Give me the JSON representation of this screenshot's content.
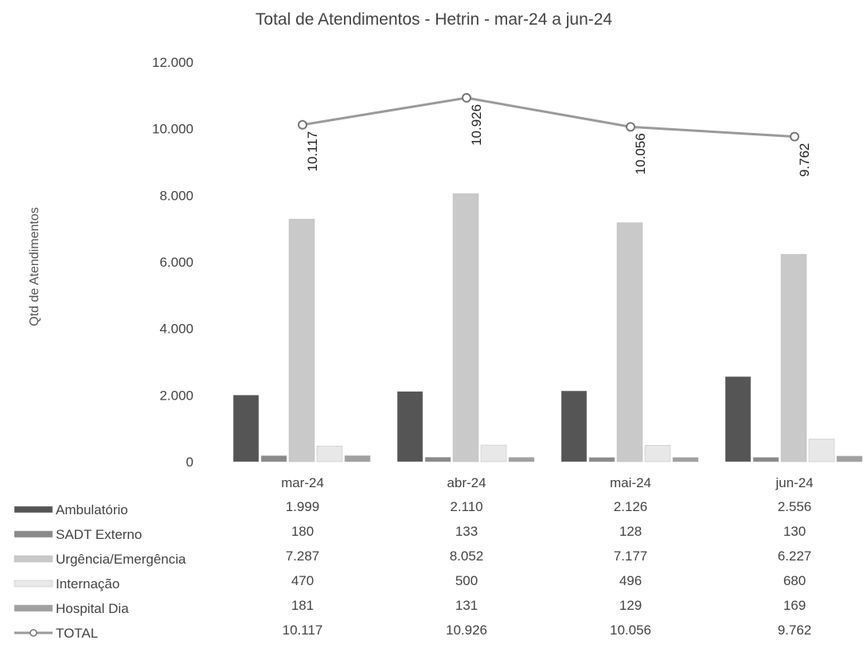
{
  "chart_data": {
    "type": "bar",
    "title": "Total de Atendimentos - Hetrin - mar-24 a jun-24",
    "ylabel": "Qtd de Atendimentos",
    "xlabel": "",
    "ylim": [
      0,
      12000
    ],
    "yticks": [
      "0",
      "2.000",
      "4.000",
      "6.000",
      "8.000",
      "10.000",
      "12.000"
    ],
    "yticks_values": [
      0,
      2000,
      4000,
      6000,
      8000,
      10000,
      12000
    ],
    "categories": [
      "mar-24",
      "abr-24",
      "mai-24",
      "jun-24"
    ],
    "series": [
      {
        "name": "Ambulatório",
        "type": "bar",
        "color": "#555555",
        "values": [
          1999,
          2110,
          2126,
          2556
        ],
        "labels": [
          "1.999",
          "2.110",
          "2.126",
          "2.556"
        ]
      },
      {
        "name": "SADT Externo",
        "type": "bar",
        "color": "#8a8a8a",
        "values": [
          180,
          133,
          128,
          130
        ],
        "labels": [
          "180",
          "133",
          "128",
          "130"
        ]
      },
      {
        "name": "Urgência/Emergência",
        "type": "bar",
        "color": "#c9c9c9",
        "values": [
          7287,
          8052,
          7177,
          6227
        ],
        "labels": [
          "7.287",
          "8.052",
          "7.177",
          "6.227"
        ]
      },
      {
        "name": "Internação",
        "type": "bar",
        "color": "#e8e8e8",
        "values": [
          470,
          500,
          496,
          680
        ],
        "labels": [
          "470",
          "500",
          "496",
          "680"
        ]
      },
      {
        "name": "Hospital Dia",
        "type": "bar",
        "color": "#a0a0a0",
        "values": [
          181,
          131,
          129,
          169
        ],
        "labels": [
          "181",
          "131",
          "129",
          "169"
        ]
      },
      {
        "name": "TOTAL",
        "type": "line",
        "color": "#9a9a9a",
        "values": [
          10117,
          10926,
          10056,
          9762
        ],
        "labels": [
          "10.117",
          "10.926",
          "10.056",
          "9.762"
        ]
      }
    ],
    "grid": false,
    "legend": "data-table"
  }
}
